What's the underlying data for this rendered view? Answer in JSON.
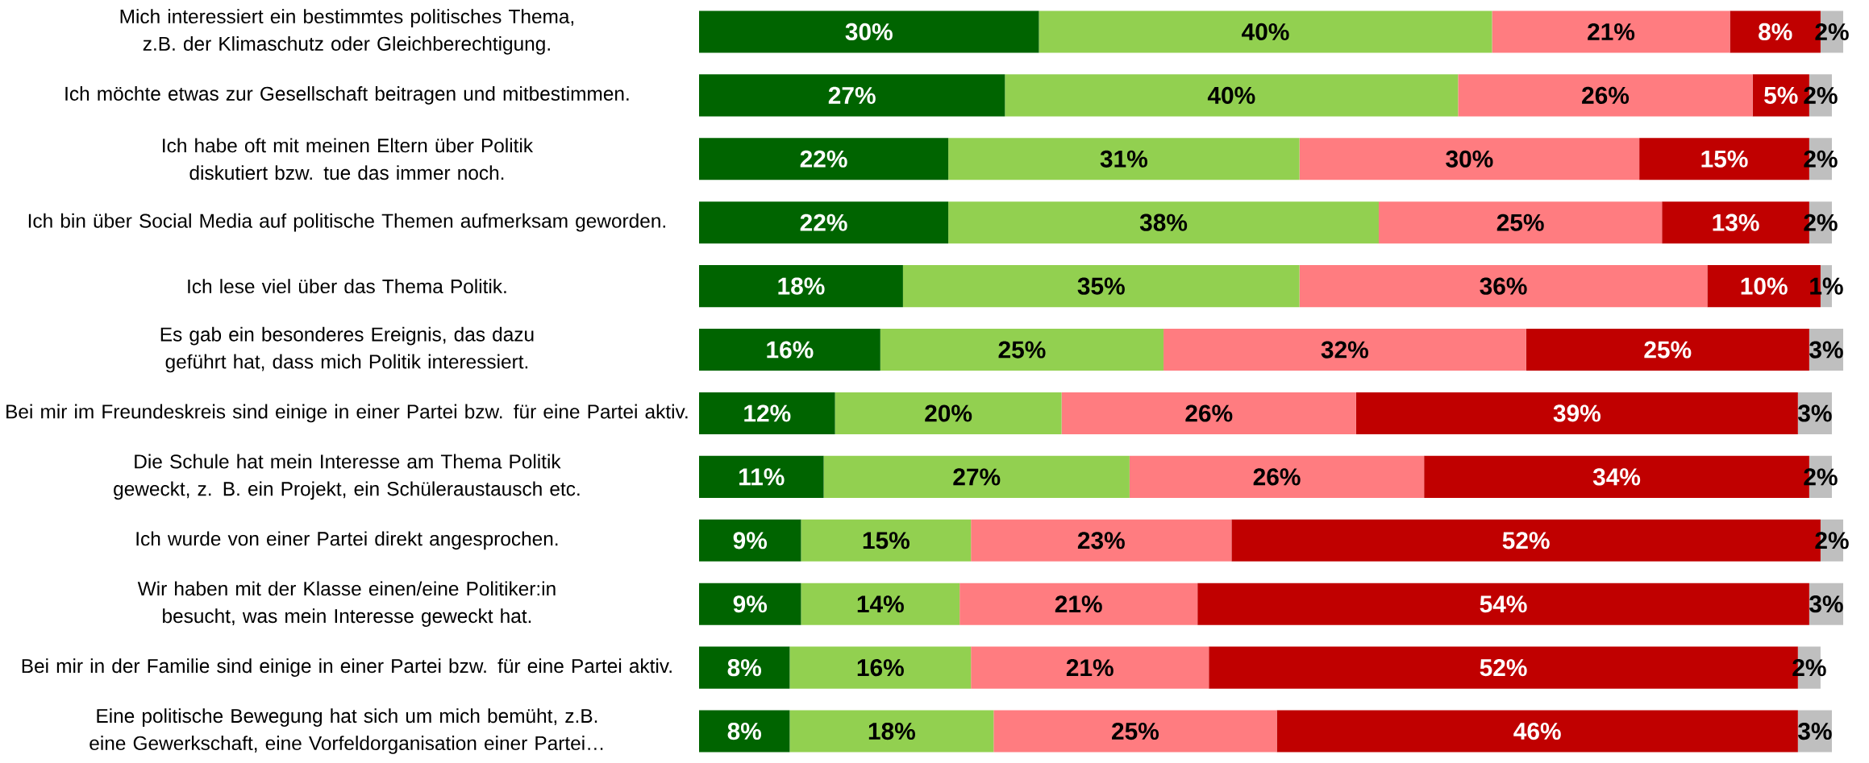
{
  "chart_data": {
    "type": "bar",
    "orientation": "horizontal",
    "stacked": true,
    "xlim": [
      0,
      101
    ],
    "categories": [
      "Mich interessiert ein bestimmtes politisches Thema, z.B. der Klimaschutz oder Gleichberechtigung.",
      "Ich möchte etwas zur Gesellschaft beitragen und mitbestimmen.",
      "Ich habe oft mit meinen Eltern über Politik diskutiert bzw. tue das immer noch.",
      "Ich bin über Social Media auf politische Themen aufmerksam geworden.",
      "Ich lese viel über das Thema Politik.",
      "Es gab ein besonderes Ereignis, das dazu geführt hat, dass mich Politik interessiert.",
      "Bei mir im Freundeskreis sind einige in einer Partei bzw. für eine Partei aktiv.",
      "Die Schule hat mein Interesse am Thema Politik geweckt, z. B. ein Projekt, ein Schüleraustausch etc.",
      "Ich wurde von einer Partei direkt angesprochen.",
      "Wir haben mit der Klasse einen/eine Politiker:in besucht, was mein Interesse geweckt hat.",
      "Bei mir in der Familie sind einige in einer Partei bzw. für eine Partei aktiv.",
      "Eine politische Bewegung hat sich um mich bemüht, z.B. eine Gewerkschaft, eine Vorfeldorganisation einer Partei…"
    ],
    "series": [
      {
        "color": "#006400",
        "values": [
          30,
          27,
          22,
          22,
          18,
          16,
          12,
          11,
          9,
          9,
          8,
          8
        ],
        "value_labels": [
          "30%",
          "27%",
          "22%",
          "22%",
          "18%",
          "16%",
          "12%",
          "11%",
          "9%",
          "9%",
          "8%",
          "8%"
        ]
      },
      {
        "color": "#92d050",
        "values": [
          40,
          40,
          31,
          38,
          35,
          25,
          20,
          27,
          15,
          14,
          16,
          18
        ],
        "value_labels": [
          "40%",
          "40%",
          "31%",
          "38%",
          "35%",
          "25%",
          "20%",
          "27%",
          "15%",
          "14%",
          "16%",
          "18%"
        ]
      },
      {
        "color": "#ff7c80",
        "values": [
          21,
          26,
          30,
          25,
          36,
          32,
          26,
          26,
          23,
          21,
          21,
          25
        ],
        "value_labels": [
          "21%",
          "26%",
          "30%",
          "25%",
          "36%",
          "32%",
          "26%",
          "26%",
          "23%",
          "21%",
          "21%",
          "25%"
        ]
      },
      {
        "color": "#c00000",
        "values": [
          8,
          5,
          15,
          13,
          10,
          25,
          39,
          34,
          52,
          54,
          52,
          46
        ],
        "value_labels": [
          "8%",
          "5%",
          "15%",
          "13%",
          "10%",
          "25%",
          "39%",
          "34%",
          "52%",
          "54%",
          "52%",
          "46%"
        ]
      },
      {
        "color": "#bfbfbf",
        "values": [
          2,
          2,
          2,
          2,
          1,
          3,
          3,
          2,
          2,
          3,
          2,
          3
        ],
        "value_labels": [
          "2%",
          "2%",
          "2%",
          "2%",
          "1%",
          "3%",
          "3%",
          "2%",
          "2%",
          "3%",
          "2%",
          "3%"
        ]
      }
    ]
  }
}
